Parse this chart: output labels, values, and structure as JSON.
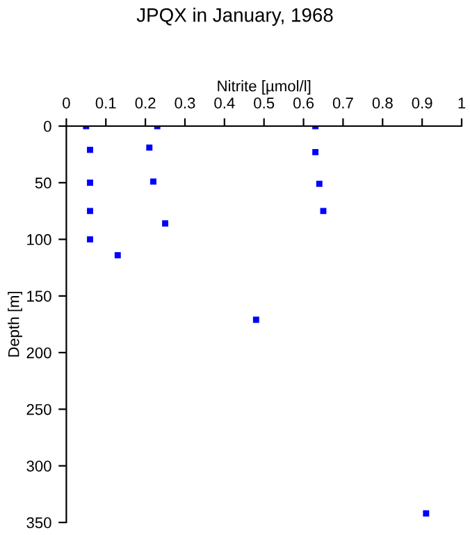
{
  "chart_data": {
    "type": "scatter",
    "title": "JPQX in January, 1968",
    "xlabel": "Nitrite [µmol/l]",
    "ylabel": "Depth [m]",
    "x": [
      0.05,
      0.06,
      0.06,
      0.06,
      0.06,
      0.13,
      0.23,
      0.21,
      0.22,
      0.25,
      0.63,
      0.63,
      0.64,
      0.65,
      0.48,
      0.91
    ],
    "series": [
      {
        "color": "#0000ff",
        "values": [
          0,
          21,
          50,
          75,
          100,
          114,
          0,
          19,
          49,
          86,
          0,
          23,
          51,
          75,
          171,
          342
        ]
      }
    ],
    "xlim": [
      0,
      1
    ],
    "xticks": [
      0,
      0.1,
      0.2,
      0.3,
      0.4,
      0.5,
      0.6,
      0.7,
      0.8,
      0.9,
      1
    ],
    "ylim": [
      350,
      0
    ],
    "yticks": [
      0,
      50,
      100,
      150,
      200,
      250,
      300,
      350
    ],
    "marker": "square",
    "grid": false,
    "legend": false
  }
}
